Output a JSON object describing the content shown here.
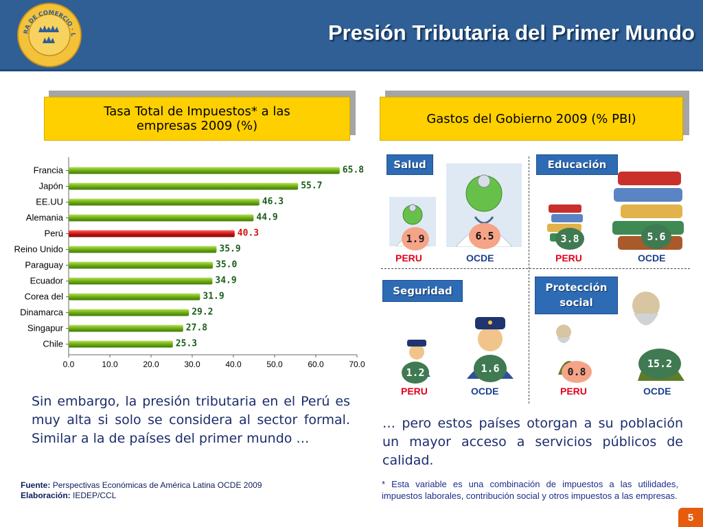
{
  "header": {
    "title": "Presión Tributaria del Primer Mundo",
    "logo_text": "CÁMARA DE COMERCIO · LIMA ·"
  },
  "left_box": {
    "title_line1": "Tasa Total de Impuestos* a las",
    "title_line2": "empresas 2009 (%)"
  },
  "right_box": {
    "title": "Gastos del Gobierno 2009 (% PBI)"
  },
  "chart_data": {
    "type": "bar",
    "orientation": "horizontal",
    "title": "Tasa Total de Impuestos* a las empresas 2009 (%)",
    "categories": [
      "Francia",
      "Japón",
      "EE.UU",
      "Alemania",
      "Perú",
      "Reino Unido",
      "Paraguay",
      "Ecuador",
      "Corea del",
      "Dinamarca",
      "Singapur",
      "Chile"
    ],
    "values": [
      65.8,
      55.7,
      46.3,
      44.9,
      40.3,
      35.9,
      35.0,
      34.9,
      31.9,
      29.2,
      27.8,
      25.3
    ],
    "value_labels": [
      "65.8",
      "55.7",
      "46.3",
      "44.9",
      "40.3",
      "35.9",
      "35.0",
      "34.9",
      "31.9",
      "29.2",
      "27.8",
      "25.3"
    ],
    "highlight_index": 4,
    "xlim": [
      0,
      70
    ],
    "ticks": [
      "0.0",
      "10.0",
      "20.0",
      "30.0",
      "40.0",
      "50.0",
      "60.0",
      "70.0"
    ],
    "colors": {
      "bar": "#6fae12",
      "highlight": "#cc1414",
      "label": "#1a5c1a",
      "highlight_label": "#cc1414"
    }
  },
  "spending": {
    "salud": {
      "tag": "Salud",
      "peru_value": "1.9",
      "ocde_value": "6.5",
      "peru_label": "PERU",
      "ocde_label": "OCDE"
    },
    "educacion": {
      "tag": "Educación",
      "peru_value": "3.8",
      "ocde_value": "5.6",
      "peru_label": "PERU",
      "ocde_label": "OCDE"
    },
    "seguridad": {
      "tag": "Seguridad",
      "peru_value": "1.2",
      "ocde_value": "1.6",
      "peru_label": "PERU",
      "ocde_label": "OCDE"
    },
    "proteccion": {
      "tag_line1": "Protección",
      "tag_line2": "social",
      "peru_value": "0.8",
      "ocde_value": "15.2",
      "peru_label": "PERU",
      "ocde_label": "OCDE"
    }
  },
  "text": {
    "left_paragraph": "Sin embargo, la presión tributaria en el Perú es muy alta si solo se considera al sector formal. Similar a la de países del primer mundo …",
    "right_paragraph": "… pero estos países otorgan a su población un mayor acceso a servicios públicos de calidad.",
    "source_label": "Fuente:",
    "source_value": "Perspectivas Económicas de América Latina OCDE 2009",
    "made_label": "Elaboración:",
    "made_value": "IEDEP/CCL",
    "footnote": "* Esta variable es una combinación de impuestos a las utilidades, impuestos laborales, contribución social y otros impuestos a las empresas."
  },
  "page_number": "5"
}
